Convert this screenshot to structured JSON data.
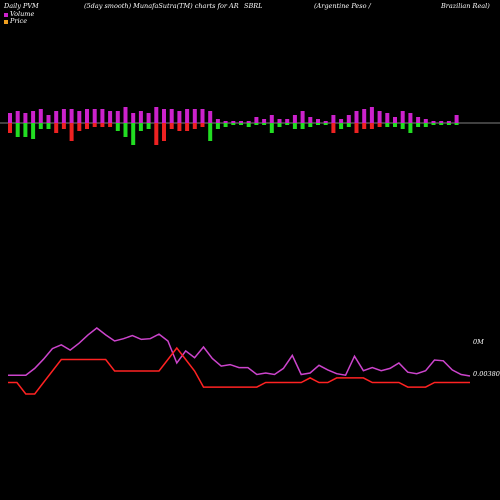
{
  "header": {
    "col1": "Daily PVM",
    "col2": "(5day smooth) MunafaSutra(TM) charts for AR",
    "col3": "SBRL",
    "col4": "(Argentine  Peso  /",
    "col5": "Brazilian  Real)"
  },
  "legend": {
    "volume_label": "Volume",
    "price_label": "Price"
  },
  "colors": {
    "background": "#000000",
    "volume_up": "#cc22cc",
    "volume_down": "#ee2222",
    "volume_neutral": "#22dd22",
    "price_line": "#ff2222",
    "volume_line": "#cc44cc",
    "axis": "#ffffff",
    "legend_volume_swatch": "#cc22cc",
    "legend_price_swatch": "#f0a020"
  },
  "chart_data": {
    "type": "bar",
    "label_volume_axis": "0M",
    "label_price_axis": "0.00380",
    "volume_bars": [
      {
        "up": 10,
        "down": 10,
        "color": "down"
      },
      {
        "up": 12,
        "down": 14,
        "color": "neutral"
      },
      {
        "up": 10,
        "down": 14,
        "color": "neutral"
      },
      {
        "up": 12,
        "down": 16,
        "color": "neutral"
      },
      {
        "up": 14,
        "down": 6,
        "color": "neutral"
      },
      {
        "up": 8,
        "down": 6,
        "color": "neutral"
      },
      {
        "up": 12,
        "down": 10,
        "color": "down"
      },
      {
        "up": 14,
        "down": 6,
        "color": "down"
      },
      {
        "up": 14,
        "down": 18,
        "color": "down"
      },
      {
        "up": 12,
        "down": 8,
        "color": "down"
      },
      {
        "up": 14,
        "down": 6,
        "color": "down"
      },
      {
        "up": 14,
        "down": 4,
        "color": "down"
      },
      {
        "up": 14,
        "down": 4,
        "color": "down"
      },
      {
        "up": 12,
        "down": 4,
        "color": "down"
      },
      {
        "up": 12,
        "down": 8,
        "color": "neutral"
      },
      {
        "up": 16,
        "down": 14,
        "color": "neutral"
      },
      {
        "up": 10,
        "down": 22,
        "color": "neutral"
      },
      {
        "up": 12,
        "down": 8,
        "color": "neutral"
      },
      {
        "up": 10,
        "down": 6,
        "color": "neutral"
      },
      {
        "up": 16,
        "down": 22,
        "color": "down"
      },
      {
        "up": 14,
        "down": 18,
        "color": "down"
      },
      {
        "up": 14,
        "down": 6,
        "color": "down"
      },
      {
        "up": 12,
        "down": 8,
        "color": "down"
      },
      {
        "up": 14,
        "down": 8,
        "color": "down"
      },
      {
        "up": 14,
        "down": 6,
        "color": "down"
      },
      {
        "up": 14,
        "down": 4,
        "color": "down"
      },
      {
        "up": 12,
        "down": 18,
        "color": "neutral"
      },
      {
        "up": 4,
        "down": 6,
        "color": "neutral"
      },
      {
        "up": 2,
        "down": 4,
        "color": "neutral"
      },
      {
        "up": 2,
        "down": 2,
        "color": "neutral"
      },
      {
        "up": 2,
        "down": 2,
        "color": "neutral"
      },
      {
        "up": 2,
        "down": 4,
        "color": "neutral"
      },
      {
        "up": 6,
        "down": 2,
        "color": "neutral"
      },
      {
        "up": 4,
        "down": 2,
        "color": "neutral"
      },
      {
        "up": 8,
        "down": 10,
        "color": "neutral"
      },
      {
        "up": 4,
        "down": 4,
        "color": "neutral"
      },
      {
        "up": 4,
        "down": 2,
        "color": "neutral"
      },
      {
        "up": 8,
        "down": 6,
        "color": "neutral"
      },
      {
        "up": 12,
        "down": 6,
        "color": "neutral"
      },
      {
        "up": 6,
        "down": 4,
        "color": "neutral"
      },
      {
        "up": 4,
        "down": 2,
        "color": "neutral"
      },
      {
        "up": 2,
        "down": 2,
        "color": "neutral"
      },
      {
        "up": 8,
        "down": 10,
        "color": "down"
      },
      {
        "up": 4,
        "down": 6,
        "color": "neutral"
      },
      {
        "up": 8,
        "down": 4,
        "color": "neutral"
      },
      {
        "up": 12,
        "down": 10,
        "color": "down"
      },
      {
        "up": 14,
        "down": 6,
        "color": "down"
      },
      {
        "up": 16,
        "down": 6,
        "color": "down"
      },
      {
        "up": 12,
        "down": 4,
        "color": "down"
      },
      {
        "up": 10,
        "down": 4,
        "color": "neutral"
      },
      {
        "up": 6,
        "down": 4,
        "color": "neutral"
      },
      {
        "up": 12,
        "down": 6,
        "color": "neutral"
      },
      {
        "up": 10,
        "down": 10,
        "color": "neutral"
      },
      {
        "up": 6,
        "down": 4,
        "color": "neutral"
      },
      {
        "up": 4,
        "down": 4,
        "color": "neutral"
      },
      {
        "up": 2,
        "down": 2,
        "color": "neutral"
      },
      {
        "up": 2,
        "down": 2,
        "color": "neutral"
      },
      {
        "up": 2,
        "down": 2,
        "color": "neutral"
      },
      {
        "up": 8,
        "down": 2,
        "color": "neutral"
      }
    ],
    "volume_line": [
      100,
      100,
      100,
      91,
      79,
      65,
      60,
      67,
      58,
      47,
      38,
      47,
      55,
      52,
      48,
      53,
      52,
      46,
      55,
      84,
      68,
      77,
      63,
      78,
      88,
      86,
      90,
      90,
      99,
      97,
      99,
      91,
      74,
      99,
      97,
      87,
      93,
      98,
      100,
      75,
      94,
      90,
      94,
      91,
      84,
      96,
      98,
      94,
      80,
      81,
      93,
      99,
      101
    ],
    "price_line": [
      0.0038,
      0.0038,
      0.00375,
      0.00375,
      0.0038,
      0.00385,
      0.0039,
      0.0039,
      0.0039,
      0.0039,
      0.0039,
      0.0039,
      0.00385,
      0.00385,
      0.00385,
      0.00385,
      0.00385,
      0.00385,
      0.0039,
      0.00395,
      0.0039,
      0.00385,
      0.00378,
      0.00378,
      0.00378,
      0.00378,
      0.00378,
      0.00378,
      0.00378,
      0.0038,
      0.0038,
      0.0038,
      0.0038,
      0.0038,
      0.00382,
      0.0038,
      0.0038,
      0.00382,
      0.00382,
      0.00382,
      0.00382,
      0.0038,
      0.0038,
      0.0038,
      0.0038,
      0.00378,
      0.00378,
      0.00378,
      0.0038,
      0.0038,
      0.0038,
      0.0038,
      0.0038
    ]
  }
}
